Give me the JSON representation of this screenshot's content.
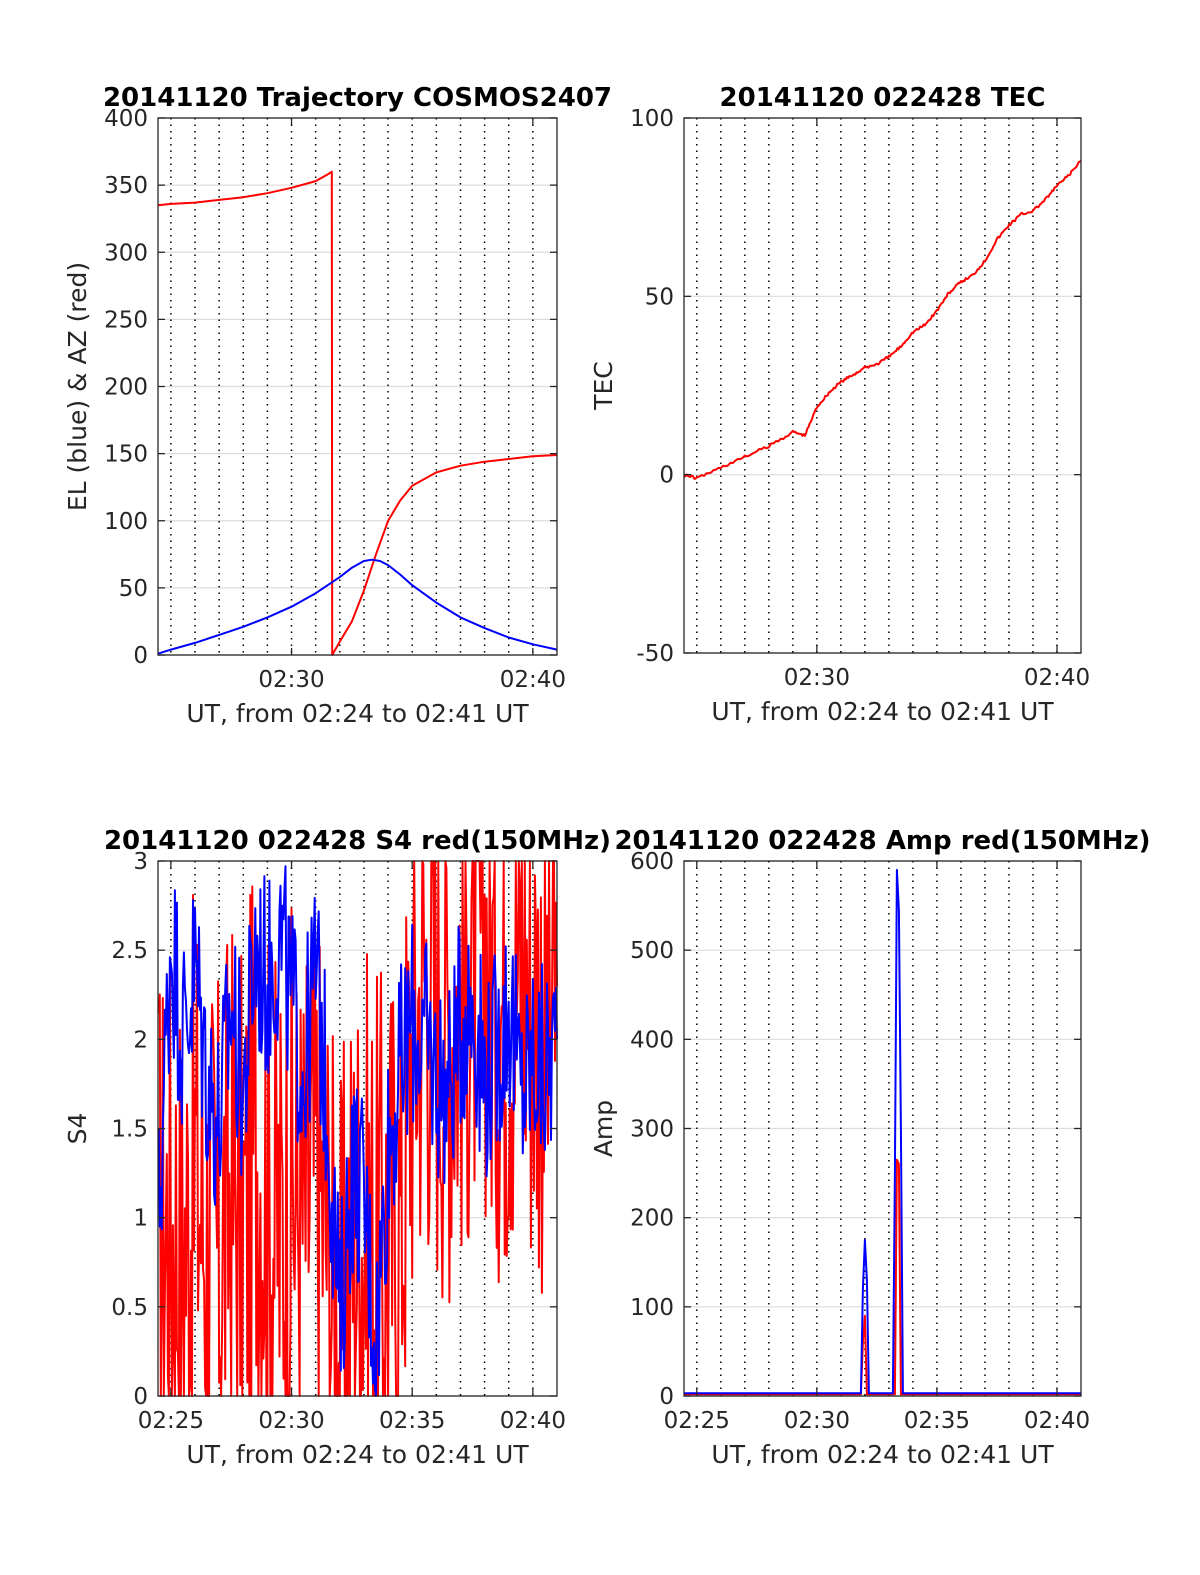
{
  "chart_data": [
    {
      "id": "trajectory",
      "type": "line",
      "title": "20141120 Trajectory COSMOS2407",
      "xlabel": "UT, from 02:24 to 02:41 UT",
      "ylabel": "EL (blue) & AZ (red)",
      "xlim": [
        "02:24:28",
        "02:41:00"
      ],
      "ylim": [
        0,
        400
      ],
      "yticks": [
        0,
        50,
        100,
        150,
        200,
        250,
        300,
        350,
        400
      ],
      "xticks": [
        "02:30",
        "02:40"
      ],
      "grid_minutes": true,
      "series": [
        {
          "color": "#ff0000",
          "x": [
            "02:24:28",
            "02:25:00",
            "02:26:00",
            "02:27:00",
            "02:28:00",
            "02:29:00",
            "02:30:00",
            "02:31:00",
            "02:31:30",
            "02:31:40",
            "02:31:41",
            "02:32:00",
            "02:32:30",
            "02:33:00",
            "02:33:30",
            "02:34:00",
            "02:34:30",
            "02:35:00",
            "02:36:00",
            "02:37:00",
            "02:38:00",
            "02:39:00",
            "02:40:00",
            "02:41:00"
          ],
          "values": [
            335,
            336,
            337,
            339,
            341,
            344,
            348,
            353,
            358,
            360,
            0,
            10,
            25,
            48,
            75,
            100,
            115,
            126,
            136,
            141,
            144,
            146,
            148,
            149
          ]
        },
        {
          "color": "#0000ff",
          "x": [
            "02:24:28",
            "02:25:00",
            "02:26:00",
            "02:27:00",
            "02:28:00",
            "02:29:00",
            "02:30:00",
            "02:31:00",
            "02:32:00",
            "02:32:30",
            "02:33:00",
            "02:33:20",
            "02:33:40",
            "02:34:00",
            "02:34:30",
            "02:35:00",
            "02:36:00",
            "02:37:00",
            "02:38:00",
            "02:39:00",
            "02:40:00",
            "02:41:00"
          ],
          "values": [
            1,
            4,
            9,
            15,
            21,
            28,
            36,
            46,
            58,
            65,
            70,
            71,
            70,
            67,
            60,
            52,
            39,
            28,
            20,
            13,
            8,
            4
          ]
        }
      ]
    },
    {
      "id": "tec",
      "type": "line",
      "title": "20141120 022428 TEC",
      "xlabel": "UT, from 02:24 to 02:41 UT",
      "ylabel": "TEC",
      "xlim": [
        "02:24:28",
        "02:41:00"
      ],
      "ylim": [
        -50,
        100
      ],
      "yticks": [
        -50,
        0,
        50,
        100
      ],
      "xticks": [
        "02:30",
        "02:40"
      ],
      "grid_minutes": true,
      "series": [
        {
          "color": "#ff0000",
          "x": [
            "02:24:28",
            "02:25:00",
            "02:26:00",
            "02:27:00",
            "02:28:00",
            "02:29:00",
            "02:29:30",
            "02:30:00",
            "02:30:30",
            "02:31:00",
            "02:31:30",
            "02:32:00",
            "02:32:30",
            "02:33:00",
            "02:33:30",
            "02:34:00",
            "02:34:30",
            "02:35:00",
            "02:35:30",
            "02:36:00",
            "02:36:30",
            "02:37:00",
            "02:37:30",
            "02:38:00",
            "02:38:30",
            "02:39:00",
            "02:39:30",
            "02:40:00",
            "02:40:30",
            "02:41:00"
          ],
          "values": [
            0,
            -1,
            2,
            5,
            8,
            12,
            11,
            19,
            23,
            26,
            28,
            30,
            31,
            33,
            36,
            40,
            42,
            46,
            51,
            54,
            56,
            60,
            66,
            70,
            73,
            74,
            77,
            81,
            84,
            88
          ]
        }
      ]
    },
    {
      "id": "s4",
      "type": "line",
      "title": "20141120 022428 S4 red(150MHz)",
      "xlabel": "UT, from 02:24 to 02:41 UT",
      "ylabel": "S4",
      "xlim": [
        "02:24:28",
        "02:41:00"
      ],
      "ylim": [
        0,
        3
      ],
      "yticks": [
        0,
        0.5,
        1,
        1.5,
        2,
        2.5,
        3
      ],
      "xticks": [
        "02:25",
        "02:30",
        "02:35",
        "02:40"
      ],
      "grid_minutes": true,
      "series": [
        {
          "color": "#ff0000",
          "x": [
            "02:24:30",
            "02:25:00",
            "02:25:30",
            "02:26:00",
            "02:26:30",
            "02:27:00",
            "02:27:30",
            "02:28:00",
            "02:28:30",
            "02:29:00",
            "02:29:30",
            "02:30:00",
            "02:30:30",
            "02:31:00",
            "02:31:30",
            "02:32:00",
            "02:32:30",
            "02:33:00",
            "02:33:30",
            "02:34:00",
            "02:34:30",
            "02:35:00",
            "02:35:30",
            "02:36:00",
            "02:36:30",
            "02:37:00",
            "02:37:30",
            "02:38:00",
            "02:38:30",
            "02:39:00",
            "02:39:30",
            "02:40:00",
            "02:40:30",
            "02:41:00"
          ],
          "values": [
            0.9,
            1.0,
            0.8,
            1.3,
            0.9,
            0.8,
            1.2,
            0.9,
            1.5,
            1.1,
            0.9,
            1.2,
            1.0,
            1.3,
            0.9,
            0.2,
            0.9,
            1.0,
            0.8,
            0.9,
            1.0,
            2.0,
            2.4,
            2.2,
            2.1,
            2.3,
            2.4,
            2.6,
            2.2,
            2.3,
            2.5,
            2.2,
            2.1,
            2.3
          ]
        },
        {
          "color": "#0000ff",
          "x": [
            "02:24:30",
            "02:25:00",
            "02:25:30",
            "02:26:00",
            "02:26:30",
            "02:27:00",
            "02:27:30",
            "02:28:00",
            "02:28:30",
            "02:29:00",
            "02:29:30",
            "02:30:00",
            "02:30:30",
            "02:31:00",
            "02:31:30",
            "02:32:00",
            "02:32:30",
            "02:33:00",
            "02:33:30",
            "02:34:00",
            "02:34:30",
            "02:35:00",
            "02:35:30",
            "02:36:00",
            "02:36:30",
            "02:37:00",
            "02:37:30",
            "02:38:00",
            "02:38:30",
            "02:39:00",
            "02:39:30",
            "02:40:00",
            "02:40:30",
            "02:41:00"
          ],
          "values": [
            1.0,
            2.6,
            2.0,
            2.4,
            1.8,
            1.5,
            2.2,
            1.7,
            2.5,
            2.3,
            2.6,
            2.2,
            1.8,
            2.4,
            1.6,
            0.4,
            1.3,
            1.1,
            0.3,
            1.4,
            1.8,
            2.1,
            2.0,
            1.8,
            1.7,
            2.1,
            2.2,
            1.8,
            1.9,
            2.2,
            1.7,
            1.9,
            1.8,
            2.0
          ]
        }
      ]
    },
    {
      "id": "amp",
      "type": "line",
      "title": "20141120 022428 Amp red(150MHz)",
      "xlabel": "UT, from 02:24 to 02:41 UT",
      "ylabel": "Amp",
      "xlim": [
        "02:24:28",
        "02:41:00"
      ],
      "ylim": [
        0,
        600
      ],
      "yticks": [
        0,
        100,
        200,
        300,
        400,
        500,
        600
      ],
      "xticks": [
        "02:25",
        "02:30",
        "02:35",
        "02:40"
      ],
      "grid_minutes": true,
      "series": [
        {
          "color": "#ff0000",
          "x": [
            "02:24:28",
            "02:31:50",
            "02:31:55",
            "02:32:00",
            "02:32:05",
            "02:33:15",
            "02:33:20",
            "02:33:25",
            "02:33:30",
            "02:41:00"
          ],
          "values": [
            2,
            2,
            60,
            90,
            2,
            2,
            265,
            260,
            2,
            2
          ]
        },
        {
          "color": "#0000ff",
          "x": [
            "02:24:28",
            "02:31:50",
            "02:31:55",
            "02:32:00",
            "02:32:05",
            "02:32:10",
            "02:33:10",
            "02:33:15",
            "02:33:20",
            "02:33:25",
            "02:33:30",
            "02:33:35",
            "02:41:00"
          ],
          "values": [
            3,
            3,
            120,
            175,
            130,
            3,
            3,
            250,
            590,
            545,
            300,
            3,
            3
          ]
        }
      ]
    }
  ]
}
